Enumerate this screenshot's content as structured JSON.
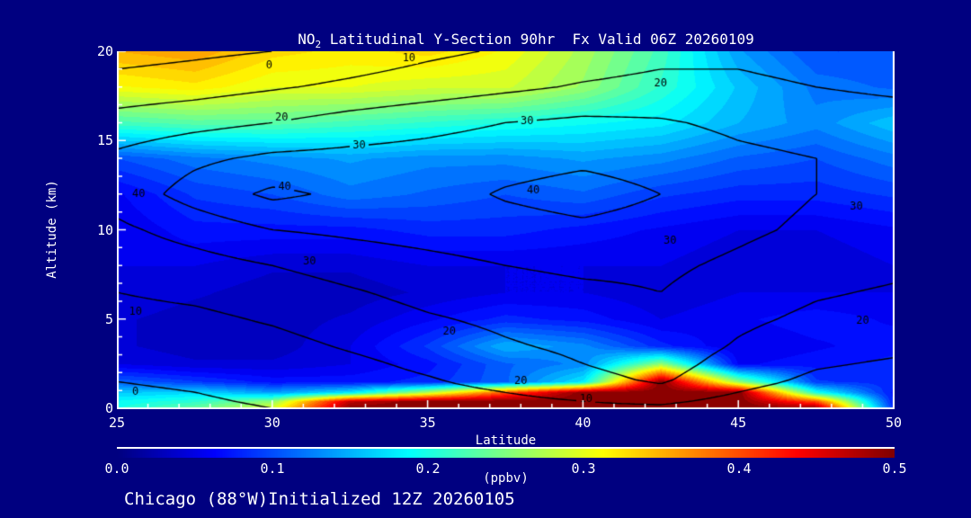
{
  "colors": {
    "background": "#000080",
    "text": "#ffffff",
    "contour_lines": "#000000",
    "axis_box": "#ffffff"
  },
  "title": {
    "prefix": "NO",
    "subscript": "2",
    "rest": " Latitudinal Y-Section 90hr  Fx Valid 06Z 20260109"
  },
  "footer": {
    "text": "Chicago (88°W)Initialized 12Z 20260105"
  },
  "axes": {
    "x_label": "Latitude",
    "y_label": "Altitude (km)",
    "colorbar_label": "(ppbv)"
  },
  "chart_data": {
    "type": "heatmap",
    "title": "NO2 Latitudinal Y-Section 90hr  Fx Valid 06Z 20260109",
    "xlabel": "Latitude",
    "ylabel": "Altitude (km)",
    "xlim": [
      25,
      50
    ],
    "ylim": [
      0,
      20
    ],
    "x_ticks_major": [
      25,
      30,
      35,
      40,
      45,
      50
    ],
    "x_tick_minor_step": 1,
    "y_ticks_major": [
      0,
      5,
      10,
      15,
      20
    ],
    "y_tick_minor_step": 1,
    "colorbar": {
      "label": "(ppbv)",
      "min": 0.0,
      "max": 0.5,
      "tick_labels": [
        "0.0",
        "0.1",
        "0.2",
        "0.3",
        "0.4",
        "0.5"
      ],
      "colormap": "jet",
      "quantize_levels": 40
    },
    "fill": {
      "units": "ppbv",
      "lats": [
        25,
        27.5,
        30,
        32.5,
        35,
        37.5,
        40,
        42.5,
        45,
        47.5,
        50
      ],
      "alts_km": [
        0,
        0.4,
        0.9,
        1.5,
        2.5,
        3.5,
        5,
        6.5,
        8,
        10,
        12,
        14,
        16,
        18,
        20
      ],
      "values": [
        [
          0.2,
          0.24,
          0.3,
          0.5,
          0.5,
          0.5,
          0.5,
          0.5,
          0.5,
          0.5,
          0.08
        ],
        [
          0.19,
          0.21,
          0.26,
          0.47,
          0.5,
          0.5,
          0.5,
          0.5,
          0.5,
          0.4,
          0.07
        ],
        [
          0.16,
          0.17,
          0.14,
          0.18,
          0.28,
          0.4,
          0.5,
          0.5,
          0.5,
          0.2,
          0.07
        ],
        [
          0.11,
          0.09,
          0.07,
          0.07,
          0.08,
          0.11,
          0.18,
          0.5,
          0.26,
          0.09,
          0.08
        ],
        [
          0.05,
          0.04,
          0.04,
          0.05,
          0.07,
          0.11,
          0.13,
          0.26,
          0.06,
          0.07,
          0.08
        ],
        [
          0.04,
          0.03,
          0.03,
          0.05,
          0.09,
          0.15,
          0.13,
          0.08,
          0.05,
          0.06,
          0.07
        ],
        [
          0.04,
          0.03,
          0.03,
          0.04,
          0.06,
          0.08,
          0.07,
          0.05,
          0.06,
          0.07,
          0.06
        ],
        [
          0.05,
          0.04,
          0.03,
          0.03,
          0.04,
          0.05,
          0.05,
          0.04,
          0.05,
          0.05,
          0.05
        ],
        [
          0.05,
          0.05,
          0.04,
          0.04,
          0.05,
          0.05,
          0.05,
          0.05,
          0.04,
          0.04,
          0.05
        ],
        [
          0.05,
          0.07,
          0.07,
          0.07,
          0.08,
          0.08,
          0.07,
          0.06,
          0.05,
          0.05,
          0.06
        ],
        [
          0.06,
          0.09,
          0.1,
          0.12,
          0.11,
          0.1,
          0.11,
          0.09,
          0.08,
          0.08,
          0.09
        ],
        [
          0.1,
          0.12,
          0.13,
          0.14,
          0.13,
          0.13,
          0.14,
          0.13,
          0.11,
          0.1,
          0.12
        ],
        [
          0.22,
          0.23,
          0.23,
          0.22,
          0.21,
          0.2,
          0.19,
          0.18,
          0.15,
          0.13,
          0.16
        ],
        [
          0.31,
          0.32,
          0.3,
          0.3,
          0.29,
          0.29,
          0.26,
          0.21,
          0.16,
          0.12,
          0.11
        ],
        [
          0.35,
          0.36,
          0.33,
          0.32,
          0.33,
          0.31,
          0.27,
          0.22,
          0.14,
          0.1,
          0.1
        ]
      ]
    },
    "overlay_contours": {
      "levels": [
        0,
        10,
        20,
        30,
        40
      ],
      "lats": [
        25,
        27.5,
        30,
        32.5,
        35,
        37.5,
        40,
        42.5,
        45,
        47.5,
        50
      ],
      "alts_km": [
        0,
        0.4,
        0.9,
        1.5,
        2.5,
        3.5,
        5,
        6.5,
        8,
        10,
        12,
        14,
        16,
        18,
        20
      ],
      "values": [
        [
          -3,
          -2,
          0,
          2,
          4,
          6,
          8,
          8,
          4,
          1,
          0
        ],
        [
          -2,
          -1,
          1,
          3,
          5,
          8,
          10,
          12,
          7,
          3,
          2
        ],
        [
          -1,
          0,
          2,
          4,
          7,
          10,
          13,
          16,
          10,
          5,
          4
        ],
        [
          0,
          1,
          3,
          6,
          9,
          13,
          17,
          21,
          13,
          8,
          6
        ],
        [
          2,
          3,
          5,
          8,
          12,
          16,
          20,
          24,
          16,
          11,
          9
        ],
        [
          4,
          5,
          7,
          11,
          15,
          19,
          22,
          26,
          19,
          14,
          12
        ],
        [
          7,
          8,
          11,
          15,
          19,
          22,
          25,
          28,
          22,
          18,
          16
        ],
        [
          10,
          12,
          15,
          19,
          23,
          26,
          28,
          30,
          25,
          21,
          19
        ],
        [
          13,
          16,
          20,
          24,
          27,
          30,
          32,
          32,
          28,
          24,
          22
        ],
        [
          18,
          24,
          30,
          32,
          34,
          36,
          38,
          36,
          32,
          28,
          26
        ],
        [
          24,
          34,
          42,
          38,
          36,
          41,
          44,
          40,
          34,
          30,
          28
        ],
        [
          22,
          28,
          32,
          33,
          34,
          36,
          38,
          36,
          32,
          30,
          29
        ],
        [
          14,
          17,
          20,
          24,
          27,
          30,
          32,
          31,
          28,
          26,
          25
        ],
        [
          4,
          6,
          9,
          12,
          15,
          18,
          21,
          23,
          22,
          20,
          18
        ],
        [
          -4,
          -2,
          0,
          4,
          8,
          11,
          14,
          17,
          18,
          16,
          14
        ]
      ],
      "labels": [
        {
          "level": 0,
          "lat": 29.9,
          "alt": 19.2
        },
        {
          "level": 10,
          "lat": 34.4,
          "alt": 19.6
        },
        {
          "level": 20,
          "lat": 30.3,
          "alt": 16.3
        },
        {
          "level": 20,
          "lat": 42.5,
          "alt": 18.2
        },
        {
          "level": 30,
          "lat": 38.2,
          "alt": 16.1
        },
        {
          "level": 30,
          "lat": 32.8,
          "alt": 14.7
        },
        {
          "level": 40,
          "lat": 25.7,
          "alt": 12.0
        },
        {
          "level": 40,
          "lat": 30.4,
          "alt": 12.4
        },
        {
          "level": 40,
          "lat": 38.4,
          "alt": 12.2
        },
        {
          "level": 30,
          "lat": 31.2,
          "alt": 8.2
        },
        {
          "level": 30,
          "lat": 42.8,
          "alt": 9.4
        },
        {
          "level": 30,
          "lat": 48.8,
          "alt": 11.3
        },
        {
          "level": 10,
          "lat": 25.6,
          "alt": 5.4
        },
        {
          "level": 20,
          "lat": 35.7,
          "alt": 4.3
        },
        {
          "level": 20,
          "lat": 38.0,
          "alt": 1.5
        },
        {
          "level": 20,
          "lat": 49.0,
          "alt": 4.9
        },
        {
          "level": 0,
          "lat": 25.6,
          "alt": 0.9
        },
        {
          "level": 10,
          "lat": 40.1,
          "alt": 0.5
        }
      ]
    }
  }
}
